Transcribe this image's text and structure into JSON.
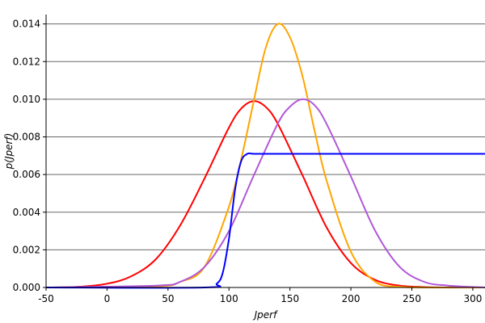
{
  "chart_data": {
    "type": "line",
    "title": "",
    "xlabel": "Jperf",
    "ylabel": "p(Jperf)",
    "xlim": [
      -50,
      310
    ],
    "ylim": [
      0,
      0.0145
    ],
    "x_ticks": [
      "-50",
      "0",
      "50",
      "100",
      "150",
      "200",
      "250",
      "300"
    ],
    "y_ticks": [
      "0.000",
      "0.002",
      "0.004",
      "0.006",
      "0.008",
      "0.010",
      "0.012",
      "0.014"
    ],
    "grid": "horizontal",
    "legend": "none",
    "series": [
      {
        "color": "#ff0000",
        "x": [
          -50,
          -25,
          0,
          20,
          40,
          60,
          80,
          100,
          110,
          120,
          130,
          140,
          160,
          180,
          200,
          220,
          240,
          260,
          280,
          310
        ],
        "y": [
          0.0,
          3e-05,
          0.0002,
          0.0006,
          0.0015,
          0.0033,
          0.0058,
          0.0085,
          0.0095,
          0.0099,
          0.0096,
          0.0087,
          0.006,
          0.0032,
          0.0013,
          0.0004,
          0.0001,
          2e-05,
          0.0,
          0.0
        ]
      },
      {
        "color": "#ffa500",
        "x": [
          -50,
          40,
          60,
          80,
          100,
          110,
          120,
          130,
          140,
          150,
          160,
          170,
          180,
          200,
          220,
          240,
          260,
          310
        ],
        "y": [
          0.0,
          6e-05,
          0.0003,
          0.0011,
          0.0043,
          0.0068,
          0.0098,
          0.0127,
          0.014,
          0.0133,
          0.0113,
          0.0084,
          0.0057,
          0.0019,
          0.0003,
          4e-05,
          0.0,
          0.0
        ]
      },
      {
        "color": "#b158d8",
        "x": [
          -50,
          40,
          60,
          80,
          100,
          120,
          140,
          150,
          160,
          170,
          180,
          200,
          220,
          240,
          260,
          280,
          310
        ],
        "y": [
          0.0,
          0.0001,
          0.0003,
          0.0011,
          0.003,
          0.0059,
          0.0087,
          0.0096,
          0.01,
          0.0097,
          0.0087,
          0.0059,
          0.003,
          0.0011,
          0.0003,
          0.0001,
          0.0
        ],
        "color_name": "medium-orchid"
      },
      {
        "color": "#0000ff",
        "x": [
          -50,
          80,
          90,
          95,
          100,
          105,
          110,
          115,
          120,
          130,
          150,
          200,
          310
        ],
        "y": [
          0.0,
          0.0,
          0.0002,
          0.0008,
          0.0026,
          0.0052,
          0.0067,
          0.0071,
          0.0071,
          0.0071,
          0.0071,
          0.0071,
          0.0071
        ]
      }
    ]
  }
}
